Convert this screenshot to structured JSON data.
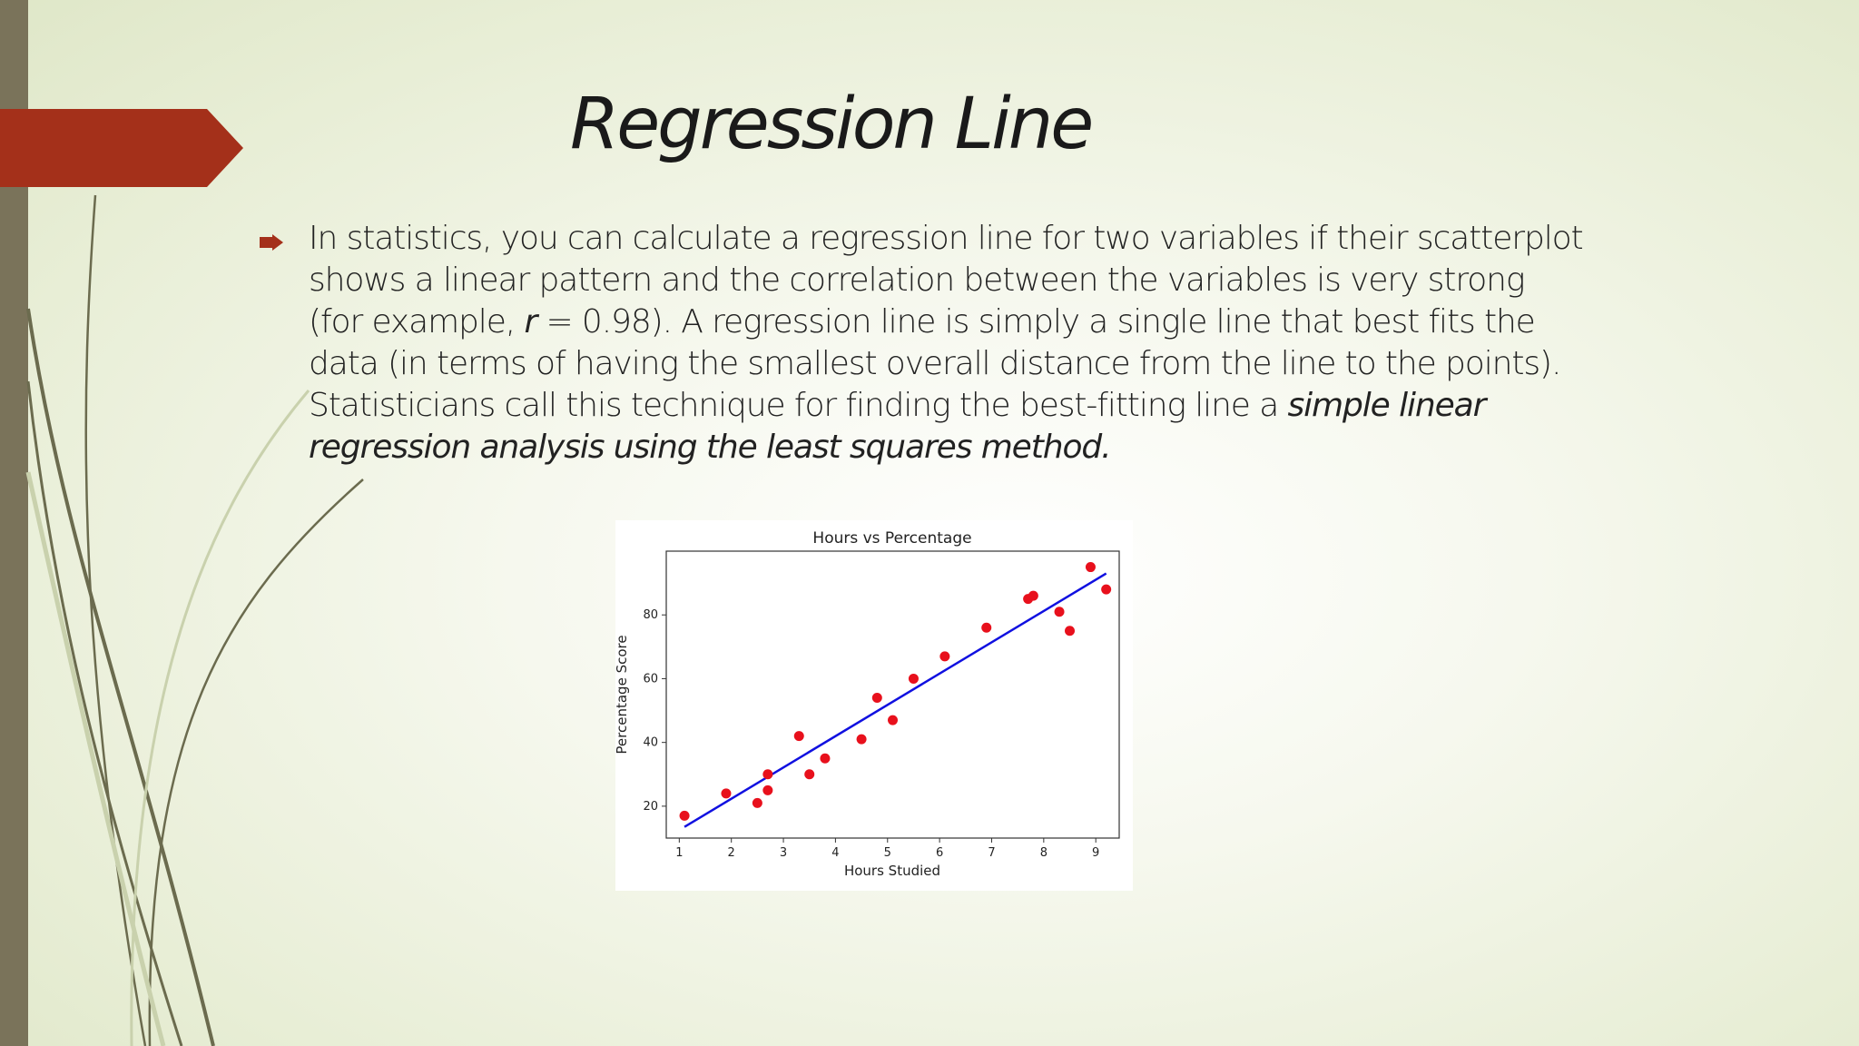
{
  "slide": {
    "title": "Regression Line",
    "bullet_lines": [
      {
        "before": "In statistics, you can calculate a regression line for two variables if their scatterplot",
        "italic": "",
        "after": ""
      },
      {
        "before": "shows a linear pattern and the correlation between the variables is very strong",
        "italic": "",
        "after": ""
      },
      {
        "before": "(for example, ",
        "italic": "r",
        "after": " = 0.98). A regression line is simply a single line that best fits the"
      },
      {
        "before": "data (in terms of having the smallest overall distance from the line to the points).",
        "italic": "",
        "after": ""
      },
      {
        "before": "Statisticians call this technique for finding the best-fitting line a ",
        "italic": "simple linear",
        "after": ""
      },
      {
        "before": "",
        "italic": "regression analysis using the least squares method.",
        "after": ""
      }
    ],
    "colors": {
      "accent_ribbon": "#a4301a",
      "left_bar": "#7a735a",
      "swoosh": "#6b6b4e",
      "bullet": "#a4301a"
    },
    "bullet_icon": "arrow-bullet-icon"
  },
  "chart_data": {
    "type": "scatter",
    "title": "Hours vs Percentage",
    "xlabel": "Hours Studied",
    "ylabel": "Percentage Score",
    "xlim": [
      0.75,
      9.45
    ],
    "ylim": [
      10,
      100
    ],
    "xticks": [
      1,
      2,
      3,
      4,
      5,
      6,
      7,
      8,
      9
    ],
    "yticks": [
      20,
      40,
      60,
      80
    ],
    "grid": false,
    "series": [
      {
        "kind": "points",
        "color": "#e8101c",
        "points": [
          [
            1.1,
            17
          ],
          [
            1.9,
            24
          ],
          [
            2.5,
            21
          ],
          [
            2.7,
            25
          ],
          [
            2.7,
            30
          ],
          [
            3.3,
            42
          ],
          [
            3.5,
            30
          ],
          [
            3.8,
            35
          ],
          [
            4.5,
            41
          ],
          [
            4.8,
            54
          ],
          [
            5.1,
            47
          ],
          [
            5.5,
            60
          ],
          [
            6.1,
            67
          ],
          [
            6.9,
            76
          ],
          [
            7.7,
            85
          ],
          [
            7.8,
            86
          ],
          [
            8.3,
            81
          ],
          [
            8.5,
            75
          ],
          [
            8.9,
            95
          ],
          [
            9.2,
            88
          ]
        ]
      },
      {
        "kind": "line",
        "color": "#1010e0",
        "points": [
          [
            1.1,
            13.5
          ],
          [
            9.2,
            93
          ]
        ]
      }
    ]
  }
}
